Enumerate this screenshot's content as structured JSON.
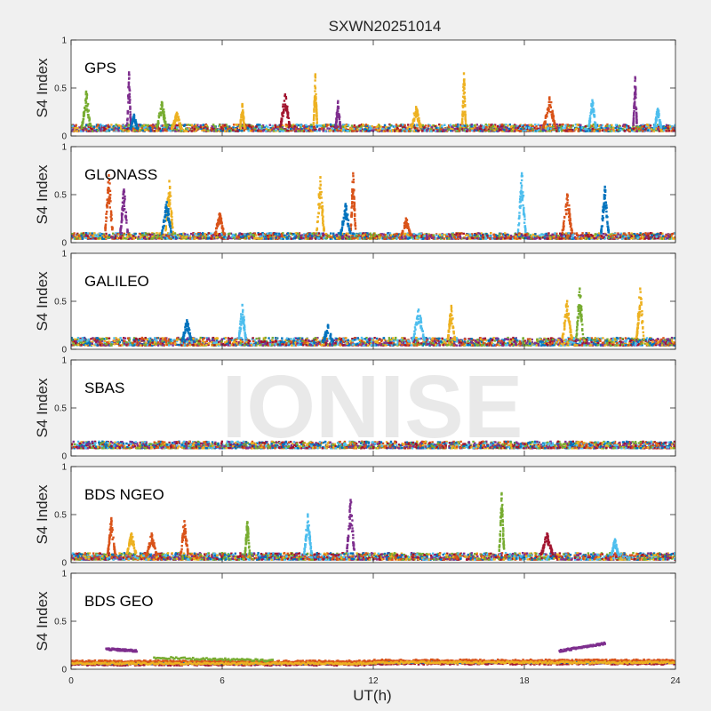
{
  "title": "SXWN20251014",
  "watermark": "IONISE",
  "xlabel": "UT(h)",
  "colors": {
    "background": "#f0f0f0",
    "axes_bg": "#ffffff",
    "axis": "#262626",
    "watermark": "#e6e6e6",
    "series": [
      "#0072bd",
      "#d95319",
      "#edb120",
      "#7e2f8e",
      "#77ac30",
      "#4dbeee",
      "#a2142f"
    ]
  },
  "chart_data": [
    {
      "type": "scatter",
      "label": "GPS",
      "ylabel": "S4 Index",
      "xlim": [
        0,
        24
      ],
      "ylim": [
        0,
        1
      ],
      "xticks": [
        0,
        6,
        12,
        18,
        24
      ],
      "yticks": [
        0,
        0.5,
        1
      ],
      "ytick_labels": [
        "0",
        "0.5",
        "1"
      ],
      "xtick_labels_visible": false,
      "baseline": [
        0.05,
        0.12
      ],
      "spikes": [
        {
          "x": 0.6,
          "peak": 0.46,
          "width": 0.35,
          "color": 4
        },
        {
          "x": 2.3,
          "peak": 0.66,
          "width": 0.15,
          "color": 3
        },
        {
          "x": 2.5,
          "peak": 0.22,
          "width": 0.3,
          "color": 0
        },
        {
          "x": 3.6,
          "peak": 0.35,
          "width": 0.4,
          "color": 4
        },
        {
          "x": 4.2,
          "peak": 0.24,
          "width": 0.4,
          "color": 2
        },
        {
          "x": 6.8,
          "peak": 0.33,
          "width": 0.2,
          "color": 2
        },
        {
          "x": 8.5,
          "peak": 0.43,
          "width": 0.4,
          "color": 6
        },
        {
          "x": 9.7,
          "peak": 0.64,
          "width": 0.15,
          "color": 2
        },
        {
          "x": 10.6,
          "peak": 0.36,
          "width": 0.2,
          "color": 3
        },
        {
          "x": 13.7,
          "peak": 0.3,
          "width": 0.4,
          "color": 2
        },
        {
          "x": 15.6,
          "peak": 0.65,
          "width": 0.15,
          "color": 2
        },
        {
          "x": 19.0,
          "peak": 0.4,
          "width": 0.5,
          "color": 1
        },
        {
          "x": 20.7,
          "peak": 0.37,
          "width": 0.3,
          "color": 5
        },
        {
          "x": 22.4,
          "peak": 0.61,
          "width": 0.15,
          "color": 3
        },
        {
          "x": 23.3,
          "peak": 0.28,
          "width": 0.3,
          "color": 5
        }
      ]
    },
    {
      "type": "scatter",
      "label": "GLONASS",
      "ylabel": "S4 Index",
      "xlim": [
        0,
        24
      ],
      "ylim": [
        0,
        1
      ],
      "xticks": [
        0,
        6,
        12,
        18,
        24
      ],
      "yticks": [
        0,
        0.5,
        1
      ],
      "ytick_labels": [
        "0",
        "0.5",
        "1"
      ],
      "xtick_labels_visible": false,
      "baseline": [
        0.04,
        0.1
      ],
      "spikes": [
        {
          "x": 1.5,
          "peak": 0.7,
          "width": 0.3,
          "color": 1
        },
        {
          "x": 2.1,
          "peak": 0.55,
          "width": 0.3,
          "color": 3
        },
        {
          "x": 3.9,
          "peak": 0.64,
          "width": 0.3,
          "color": 2
        },
        {
          "x": 3.8,
          "peak": 0.42,
          "width": 0.4,
          "color": 0
        },
        {
          "x": 5.9,
          "peak": 0.3,
          "width": 0.4,
          "color": 1
        },
        {
          "x": 9.9,
          "peak": 0.68,
          "width": 0.3,
          "color": 2
        },
        {
          "x": 11.2,
          "peak": 0.72,
          "width": 0.2,
          "color": 1
        },
        {
          "x": 10.9,
          "peak": 0.4,
          "width": 0.4,
          "color": 0
        },
        {
          "x": 13.3,
          "peak": 0.25,
          "width": 0.4,
          "color": 1
        },
        {
          "x": 17.9,
          "peak": 0.72,
          "width": 0.3,
          "color": 5
        },
        {
          "x": 19.7,
          "peak": 0.5,
          "width": 0.4,
          "color": 1
        },
        {
          "x": 21.2,
          "peak": 0.58,
          "width": 0.3,
          "color": 0
        }
      ]
    },
    {
      "type": "scatter",
      "label": "GALILEO",
      "ylabel": "S4 Index",
      "xlim": [
        0,
        24
      ],
      "ylim": [
        0,
        1
      ],
      "xticks": [
        0,
        6,
        12,
        18,
        24
      ],
      "yticks": [
        0,
        0.5,
        1
      ],
      "ytick_labels": [
        "0",
        "0.5",
        "1"
      ],
      "xtick_labels_visible": false,
      "baseline": [
        0.04,
        0.12
      ],
      "spikes": [
        {
          "x": 4.6,
          "peak": 0.3,
          "width": 0.4,
          "color": 0
        },
        {
          "x": 6.8,
          "peak": 0.46,
          "width": 0.3,
          "color": 5
        },
        {
          "x": 10.2,
          "peak": 0.25,
          "width": 0.4,
          "color": 0
        },
        {
          "x": 13.8,
          "peak": 0.41,
          "width": 0.5,
          "color": 5
        },
        {
          "x": 15.1,
          "peak": 0.45,
          "width": 0.3,
          "color": 2
        },
        {
          "x": 19.7,
          "peak": 0.5,
          "width": 0.4,
          "color": 2
        },
        {
          "x": 20.2,
          "peak": 0.63,
          "width": 0.3,
          "color": 4
        },
        {
          "x": 22.6,
          "peak": 0.63,
          "width": 0.3,
          "color": 2
        }
      ]
    },
    {
      "type": "scatter",
      "label": "SBAS",
      "ylabel": "S4 Index",
      "xlim": [
        0,
        24
      ],
      "ylim": [
        0,
        1
      ],
      "xticks": [
        0,
        6,
        12,
        18,
        24
      ],
      "yticks": [
        0,
        0.5,
        1
      ],
      "ytick_labels": [
        "0",
        "0.5",
        "1"
      ],
      "xtick_labels_visible": false,
      "baseline": [
        0.08,
        0.15
      ],
      "spikes": []
    },
    {
      "type": "scatter",
      "label": "BDS NGEO",
      "ylabel": "S4 Index",
      "xlim": [
        0,
        24
      ],
      "ylim": [
        0,
        1
      ],
      "xticks": [
        0,
        6,
        12,
        18,
        24
      ],
      "yticks": [
        0,
        0.5,
        1
      ],
      "ytick_labels": [
        "0",
        "0.5",
        "1"
      ],
      "xtick_labels_visible": false,
      "baseline": [
        0.03,
        0.1
      ],
      "spikes": [
        {
          "x": 1.6,
          "peak": 0.46,
          "width": 0.3,
          "color": 1
        },
        {
          "x": 2.4,
          "peak": 0.3,
          "width": 0.4,
          "color": 2
        },
        {
          "x": 3.2,
          "peak": 0.3,
          "width": 0.4,
          "color": 1
        },
        {
          "x": 4.5,
          "peak": 0.43,
          "width": 0.3,
          "color": 1
        },
        {
          "x": 7.0,
          "peak": 0.42,
          "width": 0.2,
          "color": 4
        },
        {
          "x": 9.4,
          "peak": 0.5,
          "width": 0.3,
          "color": 5
        },
        {
          "x": 11.1,
          "peak": 0.65,
          "width": 0.3,
          "color": 3
        },
        {
          "x": 17.1,
          "peak": 0.72,
          "width": 0.2,
          "color": 4
        },
        {
          "x": 18.9,
          "peak": 0.3,
          "width": 0.5,
          "color": 6
        },
        {
          "x": 21.6,
          "peak": 0.24,
          "width": 0.3,
          "color": 5
        }
      ]
    },
    {
      "type": "scatter",
      "label": "BDS GEO",
      "ylabel": "S4 Index",
      "xlim": [
        0,
        24
      ],
      "ylim": [
        0,
        1
      ],
      "xticks": [
        0,
        6,
        12,
        18,
        24
      ],
      "yticks": [
        0,
        0.5,
        1
      ],
      "ytick_labels": [
        "0",
        "0.5",
        "1"
      ],
      "xtick_labels": [
        "0",
        "6",
        "12",
        "18",
        "24"
      ],
      "xtick_labels_visible": true,
      "series": [
        {
          "color": 6,
          "y": 0.05
        },
        {
          "color": 0,
          "y": 0.065
        },
        {
          "color": 1,
          "y": 0.08
        },
        {
          "color": 2,
          "y": 0.06
        }
      ],
      "segments": [
        {
          "color": 3,
          "x": [
            1.4,
            2.6
          ],
          "y": [
            0.21,
            0.19
          ]
        },
        {
          "color": 4,
          "x": [
            3.3,
            8.0
          ],
          "y": [
            0.12,
            0.09
          ]
        },
        {
          "color": 3,
          "x": [
            19.4,
            21.2
          ],
          "y": [
            0.19,
            0.27
          ]
        }
      ]
    }
  ]
}
